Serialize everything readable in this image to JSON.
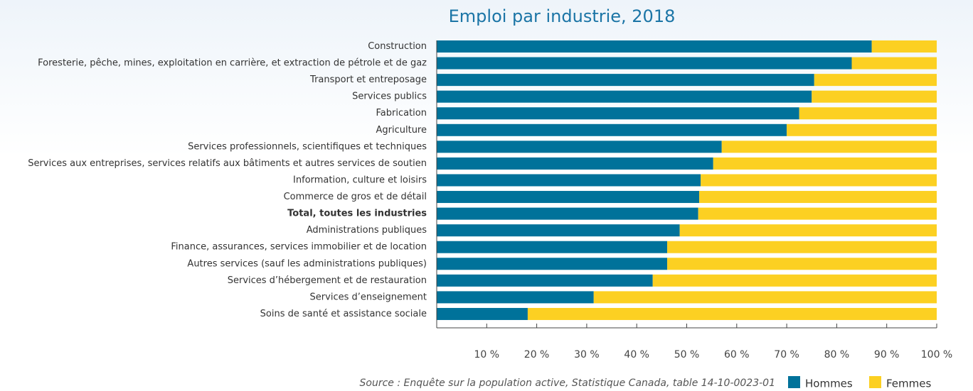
{
  "chart_data": {
    "type": "stacked-barh",
    "title": "Emploi par industrie, 2018",
    "categories": [
      "Construction",
      "Foresterie, pêche, mines, exploitation en carrière, et extraction de pétrole et de gaz",
      "Transport et entreposage",
      "Services publics",
      "Fabrication",
      "Agriculture",
      "Services professionnels, scientifiques et techniques",
      "Services aux entreprises, services relatifs aux bâtiments et autres services de soutien",
      "Information, culture et loisirs",
      "Commerce de gros et de détail",
      "Total, toutes les industries",
      "Administrations publiques",
      "Finance, assurances, services immobilier et de location",
      "Autres services (sauf les administrations publiques)",
      "Services d’hébergement et de restauration",
      "Services d’enseignement",
      "Soins de santé et assistance sociale"
    ],
    "series": [
      {
        "name": "Hommes",
        "color": "#00729a",
        "values": [
          87,
          83,
          75.5,
          75,
          72.5,
          70,
          57,
          55.3,
          52.8,
          52.5,
          52.3,
          48.6,
          46.1,
          46.1,
          43.2,
          31.4,
          18.2
        ]
      },
      {
        "name": "Femmes",
        "color": "#fcd022",
        "values": [
          13,
          17,
          24.5,
          25,
          27.5,
          30,
          43,
          44.7,
          47.2,
          47.5,
          47.7,
          51.4,
          53.9,
          53.9,
          56.8,
          68.6,
          81.8
        ]
      }
    ],
    "xlim": [
      0,
      100
    ],
    "xticks": [
      {
        "value": 10,
        "label": "10 %"
      },
      {
        "value": 20,
        "label": "20 %"
      },
      {
        "value": 30,
        "label": "30 %"
      },
      {
        "value": 40,
        "label": "40 %"
      },
      {
        "value": 50,
        "label": "50 %"
      },
      {
        "value": 60,
        "label": "60 %"
      },
      {
        "value": 70,
        "label": "70 %"
      },
      {
        "value": 80,
        "label": "80 %"
      },
      {
        "value": 90,
        "label": "90 %"
      },
      {
        "value": 100,
        "label": "100 %"
      }
    ],
    "source": "Source : Enquête sur la population active, Statistique Canada, table 14-10-0023-01"
  }
}
